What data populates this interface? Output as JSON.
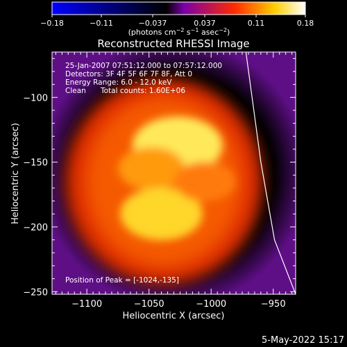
{
  "chart_data": {
    "type": "heatmap",
    "title": "Reconstructed RHESSI Image",
    "xlabel": "Heliocentric X (arcsec)",
    "ylabel": "Heliocentric Y (arcsec)",
    "xlim": [
      -1128,
      -932
    ],
    "ylim": [
      -252,
      -65
    ],
    "x_ticks": [
      -1100,
      -1050,
      -1000,
      -950
    ],
    "x_tick_labels": [
      "−1100",
      "−1050",
      "−1000",
      "−950"
    ],
    "y_ticks": [
      -100,
      -150,
      -200,
      -250
    ],
    "y_tick_labels": [
      "−100",
      "−150",
      "−200",
      "−250"
    ],
    "colorbar": {
      "min": -0.18,
      "max": 0.18,
      "ticks": [
        -0.18,
        -0.11,
        -0.037,
        0.037,
        0.11,
        0.18
      ],
      "tick_labels": [
        "−0.18",
        "−0.11",
        "−0.037",
        "0.037",
        "0.11",
        "0.18"
      ],
      "unit_main": "(photons cm",
      "unit_exp1": "−2",
      "unit_mid": " s",
      "unit_exp2": "−1",
      "unit_end": " asec",
      "unit_exp3": "−2",
      "unit_close": ")",
      "colors": [
        "#0000ff",
        "#000000",
        "#7a00a8",
        "#ff2a00",
        "#ffd000",
        "#ffffff"
      ]
    },
    "annotations": {
      "time": "25-Jan-2007 07:51:12.000 to 07:57:12.000",
      "detectors": "Detectors: 3F 4F 5F 6F 7F 8F, Att 0",
      "energy": "Energy Range: 6.0 - 12.0 keV",
      "clean": "Clean",
      "counts": "Total counts: 1.60E+06",
      "peak": "Position of Peak = [-1024,-135]"
    },
    "sources": [
      {
        "x": -1027,
        "y": -137,
        "intensity": 1.0
      },
      {
        "x": -1048,
        "y": -155,
        "intensity": 0.55
      },
      {
        "x": -1040,
        "y": -190,
        "intensity": 0.85
      },
      {
        "x": -1005,
        "y": -165,
        "intensity": 0.45
      }
    ],
    "peak": {
      "x": -1024,
      "y": -135
    },
    "limb_curve": [
      [
        -972,
        -65
      ],
      [
        -960,
        -150
      ],
      [
        -949,
        -210
      ],
      [
        -932,
        -252
      ]
    ]
  },
  "footer": {
    "date": "5-May-2022 15:17"
  }
}
